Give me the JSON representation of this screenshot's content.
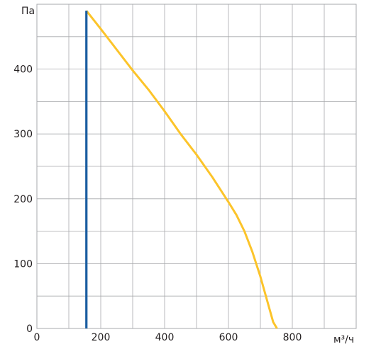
{
  "chart_data": {
    "type": "line",
    "title": "",
    "xlabel": "м³/ч",
    "ylabel": "Па",
    "xlim": [
      0,
      1000
    ],
    "ylim": [
      0,
      500
    ],
    "x_ticks": [
      0,
      200,
      400,
      600,
      800
    ],
    "y_ticks": [
      0,
      100,
      200,
      300,
      400
    ],
    "x_tick_labels": [
      "0",
      "200",
      "400",
      "600",
      "800"
    ],
    "y_tick_labels": [
      "0",
      "100",
      "200",
      "300",
      "400"
    ],
    "x_grid_step": 100,
    "y_grid_step": 50,
    "grid": true,
    "series": [
      {
        "color": "#fcc42a",
        "points": [
          [
            155,
            490
          ],
          [
            200,
            462
          ],
          [
            250,
            430
          ],
          [
            300,
            398
          ],
          [
            350,
            368
          ],
          [
            400,
            335
          ],
          [
            450,
            300
          ],
          [
            500,
            268
          ],
          [
            550,
            233
          ],
          [
            600,
            195
          ],
          [
            625,
            175
          ],
          [
            650,
            150
          ],
          [
            675,
            118
          ],
          [
            700,
            80
          ],
          [
            720,
            45
          ],
          [
            740,
            10
          ],
          [
            752,
            0
          ]
        ]
      },
      {
        "color": "#1a5da0",
        "points": [
          [
            155,
            0
          ],
          [
            155,
            490
          ]
        ]
      }
    ]
  }
}
